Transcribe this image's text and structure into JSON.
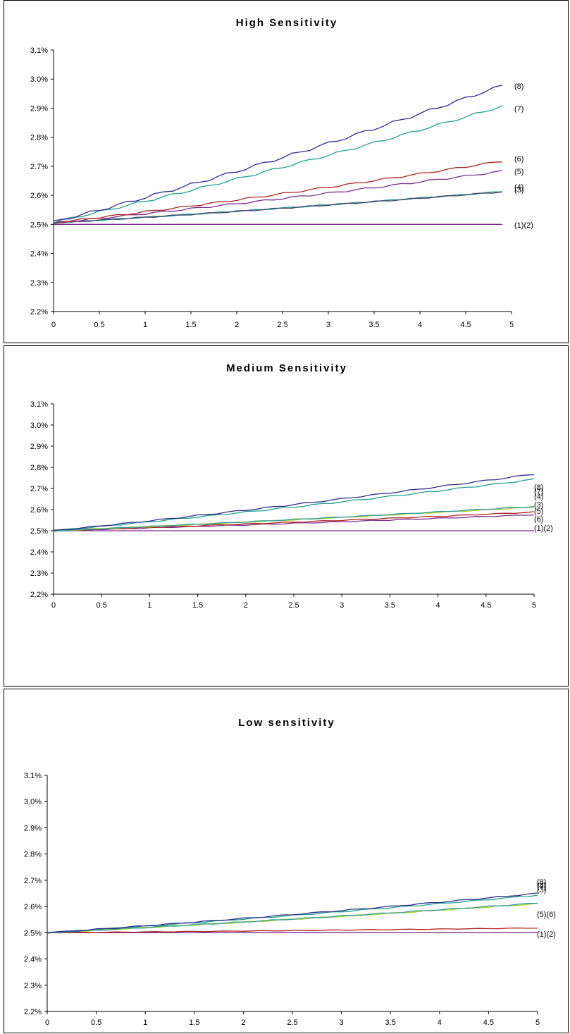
{
  "charts": [
    {
      "type": "line",
      "title": "High Sensitivity",
      "x": [
        0,
        0.1,
        0.2,
        0.3,
        0.4,
        0.5,
        0.6,
        0.7,
        0.8,
        0.9,
        1.0,
        1.1,
        1.2,
        1.3,
        1.4,
        1.5,
        1.6,
        1.7,
        1.8,
        1.9,
        2.0,
        2.1,
        2.2,
        2.3,
        2.4,
        2.5,
        2.6,
        2.7,
        2.8,
        2.9,
        3.0,
        3.1,
        3.2,
        3.3,
        3.4,
        3.5,
        3.6,
        3.7,
        3.8,
        3.9,
        4.0,
        4.1,
        4.2,
        4.3,
        4.4,
        4.5,
        4.6,
        4.7,
        4.8,
        4.9
      ],
      "xticks": [
        "0",
        "0.5",
        "1",
        "1.5",
        "2",
        "2.5",
        "3",
        "3.5",
        "4",
        "4.5",
        "5"
      ],
      "xlim": [
        0,
        5
      ],
      "yticks": [
        "2.2%",
        "2.3%",
        "2.4%",
        "2.5%",
        "2.6%",
        "2.7%",
        "2.8%",
        "2.9%",
        "3.0%",
        "3.1%"
      ],
      "ylim": [
        2.2,
        3.1
      ],
      "series": [
        {
          "label": "(1)(2)",
          "color": "#7b2d8e",
          "start": 2.5,
          "end": 2.5,
          "wiggle": 0
        },
        {
          "label": "(3)",
          "color": "#2e9a9a",
          "start": 2.505,
          "end": 2.613,
          "wiggle": 0.002
        },
        {
          "label": "(4)",
          "color": "#3a3f66",
          "start": 2.505,
          "end": 2.612,
          "wiggle": 0.002
        },
        {
          "label": "(5)",
          "color": "#7b2d8e",
          "start": 2.505,
          "end": 2.683,
          "wiggle": 0.003
        },
        {
          "label": "(6)",
          "color": "#b22222",
          "start": 2.505,
          "end": 2.718,
          "wiggle": 0.003
        },
        {
          "label": "(7)",
          "color": "#20a090",
          "start": 2.508,
          "end": 2.907,
          "wiggle": 0.004
        },
        {
          "label": "(8)",
          "color": "#2c2c8c",
          "start": 2.508,
          "end": 2.978,
          "wiggle": 0.005
        }
      ]
    },
    {
      "type": "line",
      "title": "Medium Sensitivity",
      "x": [
        0,
        0.1,
        0.2,
        0.3,
        0.4,
        0.5,
        0.6,
        0.7,
        0.8,
        0.9,
        1.0,
        1.1,
        1.2,
        1.3,
        1.4,
        1.5,
        1.6,
        1.7,
        1.8,
        1.9,
        2.0,
        2.1,
        2.2,
        2.3,
        2.4,
        2.5,
        2.6,
        2.7,
        2.8,
        2.9,
        3.0,
        3.1,
        3.2,
        3.3,
        3.4,
        3.5,
        3.6,
        3.7,
        3.8,
        3.9,
        4.0,
        4.1,
        4.2,
        4.3,
        4.4,
        4.5,
        4.6,
        4.7,
        4.8,
        4.9,
        5.0
      ],
      "xticks": [
        "0",
        "0.5",
        "1",
        "1.5",
        "2",
        "2.5",
        "3",
        "3.5",
        "4",
        "4.5",
        "5"
      ],
      "xlim": [
        0,
        5
      ],
      "yticks": [
        "2.2%",
        "2.3%",
        "2.4%",
        "2.5%",
        "2.6%",
        "2.7%",
        "2.8%",
        "2.9%",
        "3.0%",
        "3.1%"
      ],
      "ylim": [
        2.2,
        3.1
      ],
      "series": [
        {
          "label": "(1)(2)",
          "color": "#7b2d8e",
          "start": 2.5,
          "end": 2.5,
          "wiggle": 0
        },
        {
          "label": "(6)",
          "color": "#7b2d8e",
          "start": 2.5,
          "end": 2.576,
          "wiggle": 0.002
        },
        {
          "label": "(5)",
          "color": "#b22222",
          "start": 2.5,
          "end": 2.588,
          "wiggle": 0.002
        },
        {
          "label": "(3)",
          "color": "#a8d020",
          "start": 2.5,
          "end": 2.612,
          "wiggle": 0.002
        },
        {
          "label": "(4)",
          "color": "#2e9a9a",
          "start": 2.5,
          "end": 2.615,
          "wiggle": 0.002
        },
        {
          "label": "(7)",
          "color": "#20a090",
          "start": 2.5,
          "end": 2.743,
          "wiggle": 0.003
        },
        {
          "label": "(8)",
          "color": "#2c2c8c",
          "start": 2.5,
          "end": 2.768,
          "wiggle": 0.003
        }
      ]
    },
    {
      "type": "line",
      "title": "Low sensitivity",
      "x": [
        0,
        0.1,
        0.2,
        0.3,
        0.4,
        0.5,
        0.6,
        0.7,
        0.8,
        0.9,
        1.0,
        1.1,
        1.2,
        1.3,
        1.4,
        1.5,
        1.6,
        1.7,
        1.8,
        1.9,
        2.0,
        2.1,
        2.2,
        2.3,
        2.4,
        2.5,
        2.6,
        2.7,
        2.8,
        2.9,
        3.0,
        3.1,
        3.2,
        3.3,
        3.4,
        3.5,
        3.6,
        3.7,
        3.8,
        3.9,
        4.0,
        4.1,
        4.2,
        4.3,
        4.4,
        4.5,
        4.6,
        4.7,
        4.8,
        4.9,
        5.0
      ],
      "xticks": [
        "0",
        "0.5",
        "1",
        "1.5",
        "2",
        "2.5",
        "3",
        "3.5",
        "4",
        "4.5",
        "5"
      ],
      "xlim": [
        0,
        5
      ],
      "yticks": [
        "2.2%",
        "2.3%",
        "2.4%",
        "2.5%",
        "2.6%",
        "2.7%",
        "2.8%",
        "2.9%",
        "3.0%",
        "3.1%"
      ],
      "ylim": [
        2.2,
        3.1
      ],
      "series": [
        {
          "label": "(1)(2)",
          "color": "#7b2d8e",
          "start": 2.5,
          "end": 2.5,
          "wiggle": 0
        },
        {
          "label": "(5)(6)",
          "color": "#b22222",
          "start": 2.5,
          "end": 2.518,
          "wiggle": 0.001
        },
        {
          "label": "(3)",
          "color": "#a8d020",
          "start": 2.5,
          "end": 2.611,
          "wiggle": 0.002
        },
        {
          "label": "(4)",
          "color": "#2e9a9a",
          "start": 2.5,
          "end": 2.613,
          "wiggle": 0.002
        },
        {
          "label": "(7)",
          "color": "#20a090",
          "start": 2.5,
          "end": 2.643,
          "wiggle": 0.002
        },
        {
          "label": "(8)",
          "color": "#2c2c8c",
          "start": 2.5,
          "end": 2.65,
          "wiggle": 0.002
        }
      ]
    }
  ],
  "chart_data": [
    {
      "type": "line",
      "title": "High Sensitivity",
      "x_range": [
        0,
        5
      ],
      "ylim": [
        2.2,
        3.1
      ],
      "y_unit": "%",
      "series": [
        {
          "label": "(1)(2)",
          "values_at_x": {
            "0": 2.5,
            "5": 2.5
          }
        },
        {
          "label": "(3)",
          "values_at_x": {
            "0": 2.505,
            "5": 2.613
          }
        },
        {
          "label": "(4)",
          "values_at_x": {
            "0": 2.505,
            "5": 2.612
          }
        },
        {
          "label": "(5)",
          "values_at_x": {
            "0": 2.505,
            "5": 2.683
          }
        },
        {
          "label": "(6)",
          "values_at_x": {
            "0": 2.505,
            "5": 2.718
          }
        },
        {
          "label": "(7)",
          "values_at_x": {
            "0": 2.508,
            "5": 2.907
          }
        },
        {
          "label": "(8)",
          "values_at_x": {
            "0": 2.508,
            "5": 2.978
          }
        }
      ],
      "grid": false
    },
    {
      "type": "line",
      "title": "Medium Sensitivity",
      "x_range": [
        0,
        5
      ],
      "ylim": [
        2.2,
        3.1
      ],
      "y_unit": "%",
      "series": [
        {
          "label": "(1)(2)",
          "values_at_x": {
            "0": 2.5,
            "5": 2.5
          }
        },
        {
          "label": "(6)",
          "values_at_x": {
            "0": 2.5,
            "5": 2.576
          }
        },
        {
          "label": "(5)",
          "values_at_x": {
            "0": 2.5,
            "5": 2.588
          }
        },
        {
          "label": "(3)",
          "values_at_x": {
            "0": 2.5,
            "5": 2.612
          }
        },
        {
          "label": "(4)",
          "values_at_x": {
            "0": 2.5,
            "5": 2.615
          }
        },
        {
          "label": "(7)",
          "values_at_x": {
            "0": 2.5,
            "5": 2.743
          }
        },
        {
          "label": "(8)",
          "values_at_x": {
            "0": 2.5,
            "5": 2.768
          }
        }
      ],
      "grid": false
    },
    {
      "type": "line",
      "title": "Low sensitivity",
      "x_range": [
        0,
        5
      ],
      "ylim": [
        2.2,
        3.1
      ],
      "y_unit": "%",
      "series": [
        {
          "label": "(1)(2)",
          "values_at_x": {
            "0": 2.5,
            "5": 2.5
          }
        },
        {
          "label": "(5)(6)",
          "values_at_x": {
            "0": 2.5,
            "5": 2.518
          }
        },
        {
          "label": "(3)",
          "values_at_x": {
            "0": 2.5,
            "5": 2.611
          }
        },
        {
          "label": "(4)",
          "values_at_x": {
            "0": 2.5,
            "5": 2.613
          }
        },
        {
          "label": "(7)",
          "values_at_x": {
            "0": 2.5,
            "5": 2.643
          }
        },
        {
          "label": "(8)",
          "values_at_x": {
            "0": 2.5,
            "5": 2.65
          }
        }
      ],
      "grid": false
    }
  ]
}
